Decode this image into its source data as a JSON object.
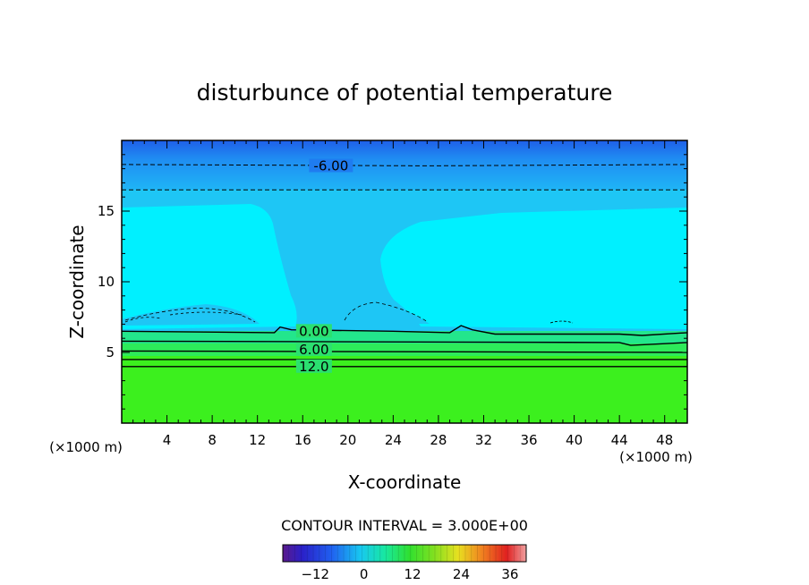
{
  "chart_data": {
    "type": "contour",
    "title": "disturbunce of potential temperature",
    "xlabel": "X-coordinate",
    "ylabel": "Z-coordinate",
    "x_unit_left": "(×1000 m)",
    "x_unit_right": "(×1000 m)",
    "xlim": [
      0,
      50
    ],
    "ylim": [
      0,
      20
    ],
    "x_ticks": [
      4,
      8,
      12,
      16,
      20,
      24,
      28,
      32,
      36,
      40,
      44,
      48
    ],
    "y_ticks": [
      5,
      10,
      15
    ],
    "contour_interval_text": "CONTOUR INTERVAL = 3.000E+00",
    "contour_labels": [
      {
        "level": "-6.00",
        "x": 18.5,
        "z": 18.2
      },
      {
        "level": "0.00",
        "x": 17.0,
        "z": 6.5
      },
      {
        "level": "6.00",
        "x": 17.0,
        "z": 5.2
      },
      {
        "level": "12.0",
        "x": 17.0,
        "z": 4.0
      }
    ],
    "contour_lines": [
      {
        "level": -6,
        "style": "dashed",
        "points": [
          [
            0,
            18.3
          ],
          [
            27,
            18.2
          ],
          [
            50,
            18.3
          ]
        ]
      },
      {
        "level": -3,
        "style": "dashed",
        "points": [
          [
            0,
            16.5
          ],
          [
            50,
            16.5
          ]
        ]
      },
      {
        "level": 0,
        "style": "solid",
        "points": [
          [
            0,
            6.5
          ],
          [
            13.5,
            6.4
          ],
          [
            14,
            6.8
          ],
          [
            15,
            6.6
          ],
          [
            24,
            6.5
          ],
          [
            29,
            6.4
          ],
          [
            30,
            6.9
          ],
          [
            31,
            6.6
          ],
          [
            33,
            6.3
          ],
          [
            36,
            6.3
          ],
          [
            44,
            6.3
          ],
          [
            46,
            6.2
          ],
          [
            50,
            6.4
          ]
        ]
      },
      {
        "level": 3,
        "style": "solid",
        "points": [
          [
            0,
            5.8
          ],
          [
            44,
            5.7
          ],
          [
            45,
            5.5
          ],
          [
            50,
            5.7
          ]
        ]
      },
      {
        "level": 6,
        "style": "solid",
        "points": [
          [
            0,
            5.1
          ],
          [
            50,
            5.0
          ]
        ]
      },
      {
        "level": 9,
        "style": "solid",
        "points": [
          [
            0,
            4.5
          ],
          [
            50,
            4.5
          ]
        ]
      },
      {
        "level": 12,
        "style": "solid",
        "points": [
          [
            0,
            4.0
          ],
          [
            50,
            4.0
          ]
        ]
      }
    ],
    "colorbar": {
      "range": [
        -20,
        40
      ],
      "tick_labels": [
        -12,
        0,
        12,
        24,
        36
      ]
    },
    "colors": {
      "top_band": "#1e6bf0",
      "upper_band": "#1ec8f5",
      "mid_cyan": "#00f0ff",
      "bottom_green": "#3cf01e",
      "stripe_green_1": "#23e68c",
      "stripe_green_2": "#2dec5a"
    }
  }
}
